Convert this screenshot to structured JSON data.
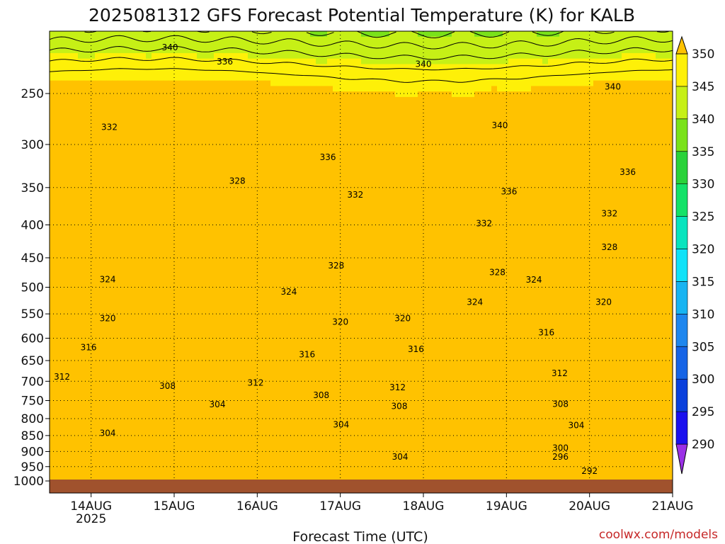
{
  "chart_data": {
    "type": "heatmap",
    "title": "2025081312 GFS Forecast Potential Temperature (K) for KALB",
    "xlabel": "Forecast Time (UTC)",
    "ylabel": "",
    "x_ticks": [
      "14AUG",
      "15AUG",
      "16AUG",
      "17AUG",
      "18AUG",
      "19AUG",
      "20AUG",
      "21AUG"
    ],
    "x_year_label": "2025",
    "x_range": [
      13.5,
      21.0
    ],
    "y_ticks": [
      250,
      300,
      350,
      400,
      450,
      500,
      550,
      600,
      650,
      700,
      750,
      800,
      850,
      900,
      950,
      1000
    ],
    "y_range": [
      200,
      1000
    ],
    "y_scale": "log-pressure (reversed)",
    "grid": "dotted",
    "colorbar_values": [
      290,
      295,
      300,
      305,
      310,
      315,
      320,
      325,
      330,
      335,
      340,
      345,
      350
    ],
    "colorbar_colors": [
      "#4a08e8",
      "#1a10ee",
      "#0a40dc",
      "#1664e6",
      "#1e86ee",
      "#18b4f2",
      "#10e2f8",
      "#08e4be",
      "#14e268",
      "#2ad23a",
      "#7ae21a",
      "#c6f016",
      "#fef008",
      "#ffc200"
    ],
    "contour_labels": [
      {
        "x": 14.95,
        "p": 212,
        "v": "340"
      },
      {
        "x": 15.61,
        "p": 223,
        "v": "336"
      },
      {
        "x": 18.0,
        "p": 225,
        "v": "340"
      },
      {
        "x": 20.28,
        "p": 244,
        "v": "340"
      },
      {
        "x": 14.22,
        "p": 282,
        "v": "332"
      },
      {
        "x": 18.92,
        "p": 280,
        "v": "340"
      },
      {
        "x": 16.85,
        "p": 314,
        "v": "336"
      },
      {
        "x": 20.46,
        "p": 331,
        "v": "336"
      },
      {
        "x": 15.76,
        "p": 342,
        "v": "328"
      },
      {
        "x": 17.18,
        "p": 359,
        "v": "332"
      },
      {
        "x": 19.03,
        "p": 355,
        "v": "336"
      },
      {
        "x": 18.73,
        "p": 398,
        "v": "332"
      },
      {
        "x": 20.24,
        "p": 384,
        "v": "332"
      },
      {
        "x": 20.24,
        "p": 433,
        "v": "328"
      },
      {
        "x": 16.95,
        "p": 463,
        "v": "328"
      },
      {
        "x": 18.89,
        "p": 474,
        "v": "328"
      },
      {
        "x": 14.2,
        "p": 486,
        "v": "324"
      },
      {
        "x": 19.33,
        "p": 487,
        "v": "324"
      },
      {
        "x": 16.38,
        "p": 508,
        "v": "324"
      },
      {
        "x": 18.62,
        "p": 527,
        "v": "324"
      },
      {
        "x": 20.17,
        "p": 527,
        "v": "320"
      },
      {
        "x": 14.2,
        "p": 559,
        "v": "320"
      },
      {
        "x": 17.0,
        "p": 566,
        "v": "320"
      },
      {
        "x": 17.75,
        "p": 559,
        "v": "320"
      },
      {
        "x": 19.48,
        "p": 588,
        "v": "316"
      },
      {
        "x": 13.97,
        "p": 620,
        "v": "316"
      },
      {
        "x": 16.6,
        "p": 636,
        "v": "316"
      },
      {
        "x": 17.91,
        "p": 624,
        "v": "316"
      },
      {
        "x": 13.65,
        "p": 689,
        "v": "312"
      },
      {
        "x": 19.64,
        "p": 680,
        "v": "312"
      },
      {
        "x": 14.92,
        "p": 712,
        "v": "308"
      },
      {
        "x": 15.98,
        "p": 704,
        "v": "312"
      },
      {
        "x": 16.77,
        "p": 736,
        "v": "308"
      },
      {
        "x": 17.69,
        "p": 716,
        "v": "312"
      },
      {
        "x": 15.52,
        "p": 761,
        "v": "304"
      },
      {
        "x": 17.71,
        "p": 765,
        "v": "308"
      },
      {
        "x": 19.65,
        "p": 760,
        "v": "308"
      },
      {
        "x": 17.01,
        "p": 818,
        "v": "304"
      },
      {
        "x": 19.84,
        "p": 820,
        "v": "304"
      },
      {
        "x": 14.2,
        "p": 843,
        "v": "304"
      },
      {
        "x": 19.65,
        "p": 889,
        "v": "300"
      },
      {
        "x": 19.65,
        "p": 917,
        "v": "296"
      },
      {
        "x": 17.72,
        "p": 918,
        "v": "304"
      },
      {
        "x": 20.0,
        "p": 965,
        "v": "292"
      }
    ]
  },
  "credit": "coolwx.com/models"
}
